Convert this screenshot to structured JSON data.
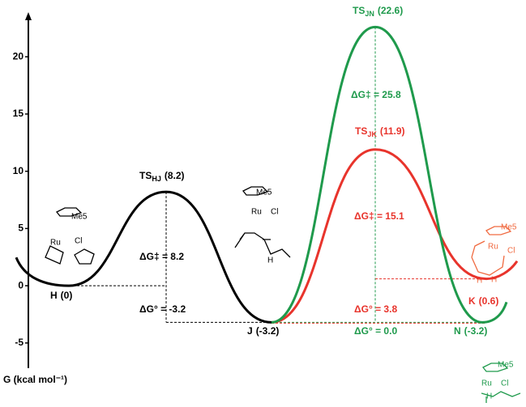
{
  "chart_data": {
    "type": "energy-profile",
    "y_label": "G (kcal mol⁻¹)",
    "ylim": [
      -7.2,
      23.9
    ],
    "yticks": [
      -5,
      0,
      5,
      10,
      15,
      20
    ],
    "series": [
      {
        "color": "#000000",
        "values": [
          0,
          8.2,
          -3.2
        ],
        "names": [
          "H",
          "TS",
          "J"
        ],
        "subs": [
          null,
          "HJ",
          null
        ],
        "value_labels": [
          "(0)",
          "(8.2)",
          "(-3.2)"
        ]
      },
      {
        "color": "#1f9a4c",
        "values": [
          -3.2,
          22.6,
          -3.2
        ],
        "names": [
          null,
          "TS",
          "N"
        ],
        "subs": [
          null,
          "JN",
          null
        ],
        "value_labels": [
          null,
          "(22.6)",
          "(-3.2)"
        ]
      },
      {
        "color": "#e8342c",
        "values": [
          -3.2,
          11.9,
          0.6
        ],
        "names": [
          null,
          "TS",
          "K"
        ],
        "subs": [
          null,
          "JK",
          null
        ],
        "value_labels": [
          null,
          "(11.9)",
          "(0.6)"
        ]
      }
    ],
    "annotations": [
      {
        "text": "ΔG‡ = 8.2",
        "color": "#000000"
      },
      {
        "text": "ΔG° = -3.2",
        "color": "#000000"
      },
      {
        "text": "ΔG‡ = 25.8",
        "color": "#1f9a4c"
      },
      {
        "text": "ΔG‡ = 15.1",
        "color": "#e8342c"
      },
      {
        "text": "ΔG° = 3.8",
        "color": "#e8342c"
      },
      {
        "text": "ΔG° = 0.0",
        "color": "#1f9a4c"
      }
    ],
    "structures": [
      {
        "color": "#000000",
        "labels": [
          "Me5",
          "Ru",
          "Cl"
        ]
      },
      {
        "color": "#000000",
        "labels": [
          "Me5",
          "Ru",
          "Cl",
          "H"
        ]
      },
      {
        "color": "#f06a40",
        "labels": [
          "Me5",
          "Ru",
          "Cl",
          "H",
          "H"
        ]
      },
      {
        "color": "#1f9a4c",
        "labels": [
          "Me5",
          "Ru",
          "Cl",
          "H"
        ]
      }
    ]
  }
}
